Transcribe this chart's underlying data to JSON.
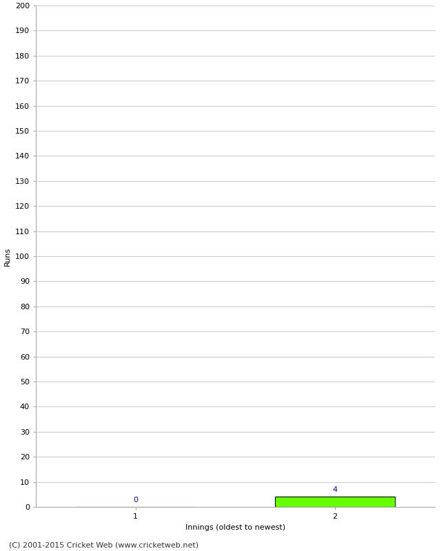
{
  "title": "",
  "xlabel": "Innings (oldest to newest)",
  "ylabel": "Runs",
  "categories": [
    1,
    2
  ],
  "values": [
    0,
    4
  ],
  "bar_colors": [
    "#66ff00",
    "#66ff00"
  ],
  "bar_edgecolors": [
    "#000000",
    "#000000"
  ],
  "ylim": [
    0,
    200
  ],
  "ytick_step": 10,
  "xlim": [
    0.5,
    2.5
  ],
  "background_color": "#ffffff",
  "grid_color": "#cccccc",
  "label_color": "#0000cc",
  "tick_label_color": "#000000",
  "footer": "(C) 2001-2015 Cricket Web (www.cricketweb.net)",
  "axis_label_fontsize": 8,
  "tick_fontsize": 8,
  "annotation_fontsize": 8,
  "footer_fontsize": 8,
  "bar_width": 0.6
}
